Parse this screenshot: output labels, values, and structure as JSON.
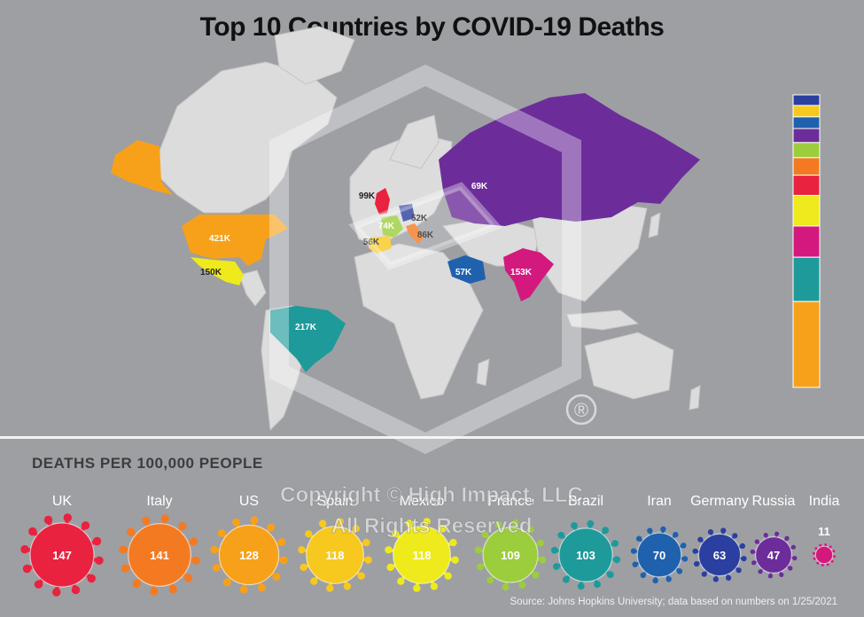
{
  "title": "Top 10 Countries by COVID-19 Deaths",
  "subtitle": "DEATHS PER 100,000 PEOPLE",
  "source": "Source: Johns Hopkins University; data based on numbers on 1/25/2021",
  "watermark": {
    "line1": "Copyright © High Impact, LLC",
    "line2": "All Rights Reserved",
    "mark": "®"
  },
  "colors": {
    "UK": "#e8223f",
    "Italy": "#f47a22",
    "US": "#f7a11a",
    "Spain": "#f7c81e",
    "Mexico": "#eeea1c",
    "France": "#9ccd3c",
    "Brazil": "#1e9a9a",
    "Iran": "#1f61ad",
    "Germany": "#2b3fa0",
    "Russia": "#6c2d9a",
    "India": "#d4197e"
  },
  "chart_data": [
    {
      "type": "map",
      "title": "Top 10 Countries by COVID-19 Deaths",
      "map_labels": [
        {
          "country": "US",
          "label": "421K"
        },
        {
          "country": "Brazil",
          "label": "217K"
        },
        {
          "country": "India",
          "label": "153K"
        },
        {
          "country": "Mexico",
          "label": "150K"
        },
        {
          "country": "UK",
          "label": "99K"
        },
        {
          "country": "Italy",
          "label": "86K"
        },
        {
          "country": "France",
          "label": "74K"
        },
        {
          "country": "Russia",
          "label": "69K"
        },
        {
          "country": "Iran",
          "label": "57K"
        },
        {
          "country": "Spain",
          "label": "56K"
        },
        {
          "country": "Germany",
          "label": "52K"
        }
      ],
      "legend_bar_values": [
        {
          "country": "US",
          "value": 421
        },
        {
          "country": "Brazil",
          "value": 217
        },
        {
          "country": "India",
          "value": 153
        },
        {
          "country": "Mexico",
          "value": 150
        },
        {
          "country": "UK",
          "value": 99
        },
        {
          "country": "Italy",
          "value": 86
        },
        {
          "country": "France",
          "value": 74
        },
        {
          "country": "Russia",
          "value": 69
        },
        {
          "country": "Iran",
          "value": 57
        },
        {
          "country": "Spain",
          "value": 56
        },
        {
          "country": "Germany",
          "value": 52
        }
      ]
    },
    {
      "type": "bubble",
      "title": "DEATHS PER 100,000 PEOPLE",
      "categories": [
        "UK",
        "Italy",
        "US",
        "Spain",
        "Mexico",
        "France",
        "Brazil",
        "Iran",
        "Germany",
        "Russia",
        "India"
      ],
      "values": [
        147,
        141,
        128,
        118,
        118,
        109,
        103,
        70,
        63,
        47,
        11
      ]
    }
  ]
}
